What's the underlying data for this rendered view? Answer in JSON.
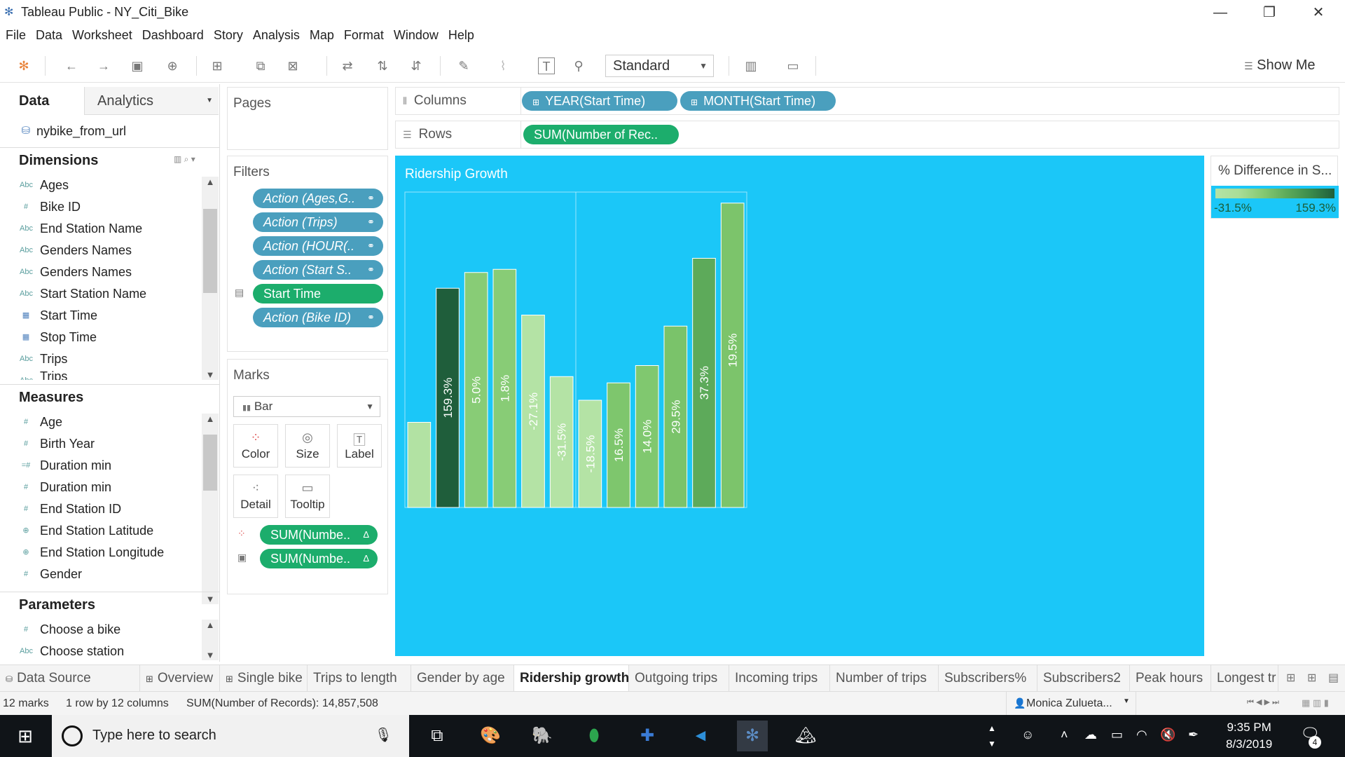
{
  "window": {
    "title": "Tableau Public - NY_Citi_Bike",
    "minimize": "—",
    "restore": "❐",
    "close": "✕"
  },
  "menu": [
    "File",
    "Data",
    "Worksheet",
    "Dashboard",
    "Story",
    "Analysis",
    "Map",
    "Format",
    "Window",
    "Help"
  ],
  "toolbar": {
    "fit_value": "Standard",
    "show_me": "Show Me",
    "icons": [
      "tableau-logo-icon",
      "undo-icon",
      "redo-icon",
      "save-icon",
      "new-datasource-icon",
      "new-worksheet-icon",
      "duplicate-sheet-icon",
      "clear-sheet-icon",
      "swap-icon",
      "sort-ascending-icon",
      "sort-descending-icon",
      "highlight-icon",
      "group-icon",
      "labels-icon",
      "pin-icon",
      "fit-width-icon",
      "presentation-icon"
    ]
  },
  "left_panel": {
    "tab_data": "Data",
    "tab_analytics": "Analytics",
    "datasource": "nybike_from_url",
    "dimensions_header": "Dimensions",
    "dimensions": [
      {
        "type": "Abc",
        "label": "Ages"
      },
      {
        "type": "#",
        "label": "Bike ID"
      },
      {
        "type": "Abc",
        "label": "End Station Name"
      },
      {
        "type": "Abc",
        "label": "Genders Names"
      },
      {
        "type": "Abc",
        "label": "Genders Names"
      },
      {
        "type": "Abc",
        "label": "Start Station Name"
      },
      {
        "type": "▦",
        "label": "Start Time"
      },
      {
        "type": "▦",
        "label": "Stop Time"
      },
      {
        "type": "Abc",
        "label": "Trips"
      },
      {
        "type": "Abc",
        "label": "Trips"
      }
    ],
    "measures_header": "Measures",
    "measures": [
      {
        "type": "#",
        "label": "Age"
      },
      {
        "type": "#",
        "label": "Birth Year"
      },
      {
        "type": "=#",
        "label": "Duration min"
      },
      {
        "type": "#",
        "label": "Duration min"
      },
      {
        "type": "#",
        "label": "End Station ID"
      },
      {
        "type": "⊕",
        "label": "End Station Latitude"
      },
      {
        "type": "⊕",
        "label": "End Station Longitude"
      },
      {
        "type": "#",
        "label": "Gender"
      }
    ],
    "parameters_header": "Parameters",
    "parameters": [
      {
        "type": "#",
        "label": "Choose a bike"
      },
      {
        "type": "Abc",
        "label": "Choose station"
      }
    ]
  },
  "pages_title": "Pages",
  "filters": {
    "title": "Filters",
    "pills": [
      {
        "label": "Action (Ages,G..",
        "style": "blue"
      },
      {
        "label": "Action (Trips)",
        "style": "blue"
      },
      {
        "label": "Action (HOUR(..",
        "style": "blue"
      },
      {
        "label": "Action (Start S..",
        "style": "blue"
      },
      {
        "label": "Start Time",
        "style": "green"
      },
      {
        "label": "Action (Bike ID)",
        "style": "blue"
      }
    ]
  },
  "marks": {
    "title": "Marks",
    "mark_type": "Bar",
    "buttons": [
      "Color",
      "Size",
      "Label",
      "Detail",
      "Tooltip"
    ],
    "pills": [
      "SUM(Numbe..",
      "SUM(Numbe.."
    ]
  },
  "shelves": {
    "columns_label": "Columns",
    "rows_label": "Rows",
    "columns": [
      "YEAR(Start Time)",
      "MONTH(Start Time)"
    ],
    "rows": [
      "SUM(Number of Rec.."
    ]
  },
  "legend": {
    "title": "% Difference in S...",
    "min": "-31.5%",
    "max": "159.3%"
  },
  "chart_data": {
    "type": "bar",
    "title": "Ridership Growth",
    "values": [
      0.27,
      0.695,
      0.745,
      0.755,
      0.61,
      0.415,
      0.34,
      0.395,
      0.45,
      0.575,
      0.79,
      0.965
    ],
    "labels": [
      "",
      "159.3%",
      "5.0%",
      "1.8%",
      "-27.1%",
      "-31.5%",
      "-18.5%",
      "16.5%",
      "14.0%",
      "29.5%",
      "37.3%",
      "19.5%"
    ],
    "colors": [
      "#b2e2a3",
      "#1f5e3b",
      "#88cc76",
      "#88cc76",
      "#b4e3a5",
      "#b4e3a5",
      "#b4e3a5",
      "#7ec66d",
      "#80c86f",
      "#7ac36a",
      "#5daa5a",
      "#7cc46b"
    ],
    "year_panels": 2,
    "first_panel_bars": 6
  },
  "sheet_tabs": {
    "data_source": "Data Source",
    "tabs": [
      "Overview",
      "Single bike",
      "Trips to length",
      "Gender by age",
      "Ridership growth",
      "Outgoing trips",
      "Incoming trips",
      "Number of trips",
      "Subscribers%",
      "Subscribers2",
      "Peak hours",
      "Longest tr"
    ],
    "active": "Ridership growth"
  },
  "status": {
    "marks": "12 marks",
    "dims": "1 row by 12 columns",
    "sum": "SUM(Number of Records): 14,857,508",
    "user": "Monica Zulueta..."
  },
  "taskbar": {
    "search_placeholder": "Type here to search",
    "time": "9:35 PM",
    "date": "8/3/2019",
    "notif_count": "4"
  }
}
